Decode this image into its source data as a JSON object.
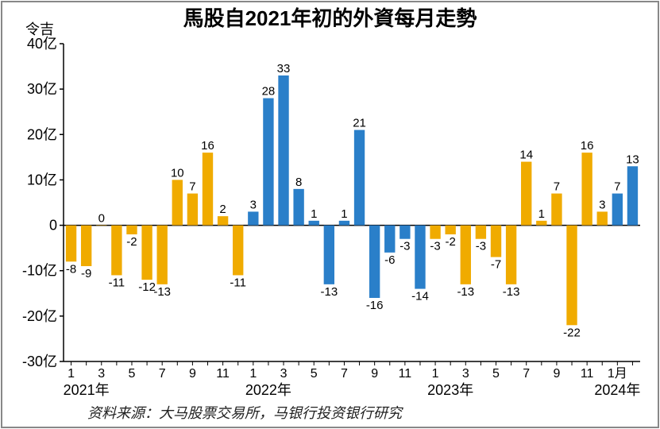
{
  "chart": {
    "type": "bar",
    "title": "馬股自2021年初的外資每月走勢",
    "ylabel": "令吉",
    "ylim": [
      -30,
      40
    ],
    "ytick_step": 10,
    "ytick_suffix": "亿",
    "yticks": [
      -30,
      -20,
      -10,
      0,
      10,
      20,
      30,
      40
    ],
    "yticks_labels": [
      "-30亿",
      "-20亿",
      "-10亿",
      "0",
      "10亿",
      "20亿",
      "30亿",
      "40亿"
    ],
    "background_color": "#ffffff",
    "axis_color": "#000000",
    "grid_color": "#e0e0e0",
    "colors": {
      "2021": "#f0ab00",
      "2022": "#2a7fc9",
      "2023": "#f0ab00",
      "2024": "#2a7fc9"
    },
    "bar_width": 0.7,
    "x_tick_major": [
      1,
      3,
      5,
      7,
      9,
      11
    ],
    "years": [
      {
        "year": "2021年",
        "label": "2021年",
        "months": [
          {
            "m": 1,
            "v": -8
          },
          {
            "m": 2,
            "v": -9
          },
          {
            "m": 3,
            "v": 0
          },
          {
            "m": 4,
            "v": -11
          },
          {
            "m": 5,
            "v": -2
          },
          {
            "m": 6,
            "v": -12
          },
          {
            "m": 7,
            "v": -13
          },
          {
            "m": 8,
            "v": 10
          },
          {
            "m": 9,
            "v": 7
          },
          {
            "m": 10,
            "v": 16
          },
          {
            "m": 11,
            "v": 2
          },
          {
            "m": 12,
            "v": -11
          }
        ]
      },
      {
        "year": "2022年",
        "label": "2022年",
        "months": [
          {
            "m": 1,
            "v": 3
          },
          {
            "m": 2,
            "v": 28
          },
          {
            "m": 3,
            "v": 33
          },
          {
            "m": 4,
            "v": 8
          },
          {
            "m": 5,
            "v": 1
          },
          {
            "m": 6,
            "v": -13
          },
          {
            "m": 7,
            "v": 1
          },
          {
            "m": 8,
            "v": 21
          },
          {
            "m": 9,
            "v": -16
          },
          {
            "m": 10,
            "v": -6
          },
          {
            "m": 11,
            "v": -3
          },
          {
            "m": 12,
            "v": -14
          }
        ]
      },
      {
        "year": "2023年",
        "label": "2023年",
        "months": [
          {
            "m": 1,
            "v": -3
          },
          {
            "m": 2,
            "v": -2
          },
          {
            "m": 3,
            "v": -13
          },
          {
            "m": 4,
            "v": -3
          },
          {
            "m": 5,
            "v": -7
          },
          {
            "m": 6,
            "v": -13
          },
          {
            "m": 7,
            "v": 14
          },
          {
            "m": 8,
            "v": 1
          },
          {
            "m": 9,
            "v": 7
          },
          {
            "m": 10,
            "v": -22
          },
          {
            "m": 11,
            "v": 16
          },
          {
            "m": 12,
            "v": 3
          }
        ]
      },
      {
        "year": "2024年",
        "label": "2024年",
        "months": [
          {
            "m": 1,
            "v": 7,
            "xlabel": "1月"
          },
          {
            "m": 2,
            "v": 13
          }
        ]
      }
    ],
    "source_label": "资料来源：大马股票交易所，马银行投资银行研究"
  }
}
